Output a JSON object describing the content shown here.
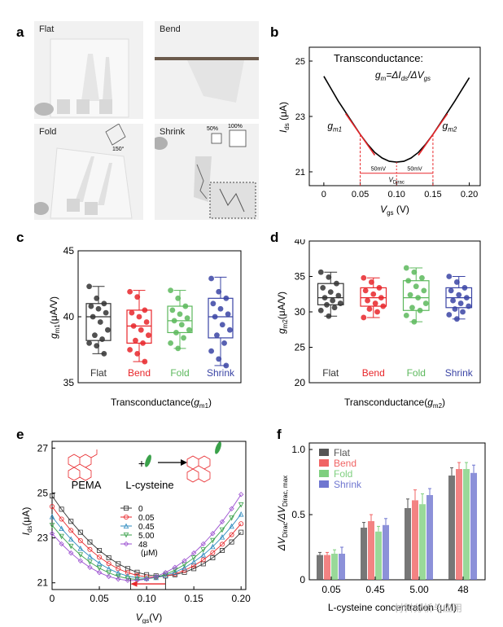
{
  "panels": {
    "a": {
      "letter": "a",
      "photos": [
        {
          "label": "Flat"
        },
        {
          "label": "Bend"
        },
        {
          "label": "Fold",
          "angle_label": "150°"
        },
        {
          "label": "Shrink",
          "scale_small": "50%",
          "scale_large": "100%"
        }
      ]
    },
    "b": {
      "letter": "b"
    },
    "c": {
      "letter": "c"
    },
    "d": {
      "letter": "d"
    },
    "e": {
      "letter": "e"
    },
    "f": {
      "letter": "f"
    }
  },
  "watermark": "材料分析与应用",
  "chart_data": [
    {
      "id": "b",
      "type": "line",
      "title": "Transconductance:",
      "formula": "g_m = ΔI_ds / ΔV_gs",
      "xlabel": "V_gs (V)",
      "ylabel": "I_ds (μA)",
      "xlim": [
        -0.02,
        0.215
      ],
      "ylim": [
        20.5,
        25.5
      ],
      "xticks": [
        0,
        0.05,
        0.1,
        0.15,
        0.2
      ],
      "xtick_labels": [
        "0",
        "0.05",
        "0.10",
        "0.15",
        "0.20"
      ],
      "yticks": [
        21,
        23,
        25
      ],
      "x": [
        0,
        0.01,
        0.02,
        0.03,
        0.04,
        0.05,
        0.06,
        0.07,
        0.08,
        0.09,
        0.1,
        0.11,
        0.12,
        0.13,
        0.14,
        0.15,
        0.16,
        0.17,
        0.18,
        0.19,
        0.2
      ],
      "y": [
        24.45,
        24.0,
        23.55,
        23.15,
        22.75,
        22.35,
        22.0,
        21.7,
        21.5,
        21.38,
        21.35,
        21.38,
        21.5,
        21.7,
        22.0,
        22.35,
        22.75,
        23.15,
        23.55,
        23.98,
        24.4
      ],
      "annotations": {
        "gm1": "g_m1",
        "gm2": "g_m2",
        "left_span": "50mV",
        "right_span": "50mV",
        "dirac": "V_Dirac"
      },
      "tangent_points": [
        0.05,
        0.15
      ],
      "dirac_x": 0.1
    },
    {
      "id": "c",
      "type": "box",
      "xlabel": "Transconductance(g_m1)",
      "ylabel": "g_m1 (μA/V)",
      "ylim": [
        35,
        45
      ],
      "yticks": [
        35,
        40,
        45
      ],
      "categories": [
        "Flat",
        "Bend",
        "Fold",
        "Shrink"
      ],
      "colors": [
        "#333333",
        "#e8262a",
        "#5cb85c",
        "#3a44a5"
      ],
      "boxes": [
        {
          "min": 37.2,
          "q1": 38.2,
          "median": 40.0,
          "q3": 41.0,
          "max": 42.3,
          "points": [
            42.3,
            41.4,
            41.0,
            40.8,
            40.6,
            40.3,
            40.0,
            39.6,
            39.0,
            38.6,
            38.3,
            38.0,
            37.8,
            37.2
          ]
        },
        {
          "min": 36.6,
          "q1": 38.0,
          "median": 39.3,
          "q3": 40.5,
          "max": 42.0,
          "points": [
            41.9,
            41.5,
            40.5,
            40.3,
            40.0,
            39.6,
            39.3,
            39.0,
            38.6,
            38.2,
            38.0,
            37.5,
            37.2,
            36.6
          ]
        },
        {
          "min": 37.6,
          "q1": 38.8,
          "median": 39.7,
          "q3": 40.8,
          "max": 42.0,
          "points": [
            42.0,
            41.4,
            40.8,
            40.5,
            40.2,
            39.9,
            39.7,
            39.4,
            39.0,
            38.8,
            38.4,
            38.0,
            37.6
          ]
        },
        {
          "min": 36.3,
          "q1": 38.4,
          "median": 40.0,
          "q3": 41.4,
          "max": 43.0,
          "points": [
            42.9,
            41.9,
            41.4,
            41.0,
            40.6,
            40.2,
            40.0,
            39.4,
            39.0,
            38.6,
            38.0,
            37.4,
            36.8,
            36.3
          ]
        }
      ]
    },
    {
      "id": "d",
      "type": "box",
      "xlabel": "Transconductance(g_m2)",
      "ylabel": "g_m2 (μA/V)",
      "ylim": [
        20,
        40
      ],
      "yticks": [
        20,
        25,
        30,
        35,
        40
      ],
      "categories": [
        "Flat",
        "Bend",
        "Fold",
        "Shrink"
      ],
      "colors": [
        "#333333",
        "#e8262a",
        "#5cb85c",
        "#3a44a5"
      ],
      "boxes": [
        {
          "min": 29.4,
          "q1": 31.0,
          "median": 32.0,
          "q3": 34.0,
          "max": 35.6,
          "points": [
            35.6,
            34.9,
            34.0,
            33.4,
            32.8,
            32.3,
            32.0,
            31.6,
            31.2,
            31.0,
            30.6,
            30.2,
            29.4
          ]
        },
        {
          "min": 29.2,
          "q1": 30.8,
          "median": 32.0,
          "q3": 33.4,
          "max": 34.8,
          "points": [
            34.8,
            34.2,
            33.4,
            33.0,
            32.5,
            32.0,
            31.6,
            31.2,
            30.8,
            30.4,
            30.0,
            29.2
          ]
        },
        {
          "min": 28.6,
          "q1": 30.2,
          "median": 32.0,
          "q3": 34.4,
          "max": 36.2,
          "points": [
            36.2,
            35.6,
            34.8,
            34.4,
            33.6,
            33.0,
            32.4,
            32.0,
            31.2,
            30.6,
            30.2,
            29.5,
            28.6
          ]
        },
        {
          "min": 29.0,
          "q1": 30.6,
          "median": 32.0,
          "q3": 33.4,
          "max": 35.0,
          "points": [
            35.0,
            34.2,
            33.4,
            33.0,
            32.4,
            32.0,
            31.6,
            31.2,
            30.8,
            30.4,
            30.0,
            29.6,
            29.0
          ]
        }
      ]
    },
    {
      "id": "e",
      "type": "line",
      "xlabel": "V_gs (V)",
      "ylabel": "I_ds (μA)",
      "xlim": [
        0,
        0.205
      ],
      "ylim": [
        20.7,
        27.3
      ],
      "xticks": [
        0,
        0.05,
        0.1,
        0.15,
        0.2
      ],
      "xtick_labels": [
        "0",
        "0.05",
        "0.10",
        "0.15",
        "0.20"
      ],
      "yticks": [
        21,
        23,
        25,
        27
      ],
      "legend_title": "(μM)",
      "legend_position": "center",
      "inset_labels": {
        "molecule_a": "PEMA",
        "plus": "+",
        "molecule_b": "L-cysteine"
      },
      "series": [
        {
          "name": "0",
          "marker": "square",
          "color": "#333333",
          "dirac": 0.115,
          "iat": 21.3,
          "a": 270
        },
        {
          "name": "0.05",
          "marker": "circle",
          "color": "#e8262a",
          "dirac": 0.107,
          "iat": 21.25,
          "a": 275
        },
        {
          "name": "0.45",
          "marker": "triangle",
          "color": "#2e8bbf",
          "dirac": 0.099,
          "iat": 21.2,
          "a": 280
        },
        {
          "name": "5.00",
          "marker": "triangle-down",
          "color": "#3aa14a",
          "dirac": 0.092,
          "iat": 21.15,
          "a": 285
        },
        {
          "name": "48",
          "marker": "diamond",
          "color": "#9b4fd0",
          "dirac": 0.085,
          "iat": 21.1,
          "a": 290
        }
      ]
    },
    {
      "id": "f",
      "type": "bar",
      "xlabel": "L-cysteine concentration (μM)",
      "ylabel": "ΔV_Dirac / ΔV_Dirac,max",
      "ylim": [
        0,
        1.05
      ],
      "yticks": [
        0,
        0.5,
        1.0
      ],
      "ytick_labels": [
        "0",
        "0.5",
        "1.0"
      ],
      "categories": [
        "0.05",
        "0.45",
        "5.00",
        "48"
      ],
      "legend_position": "top-left",
      "series": [
        {
          "name": "Flat",
          "color": "#555555",
          "values": [
            0.19,
            0.4,
            0.55,
            0.8
          ],
          "errors": [
            0.02,
            0.04,
            0.07,
            0.06
          ]
        },
        {
          "name": "Bend",
          "color": "#f06464",
          "values": [
            0.19,
            0.45,
            0.61,
            0.85
          ],
          "errors": [
            0.02,
            0.05,
            0.08,
            0.05
          ]
        },
        {
          "name": "Fold",
          "color": "#7fcf7f",
          "values": [
            0.2,
            0.37,
            0.58,
            0.85
          ],
          "errors": [
            0.03,
            0.04,
            0.08,
            0.05
          ]
        },
        {
          "name": "Shrink",
          "color": "#6f76d0",
          "values": [
            0.2,
            0.42,
            0.65,
            0.82
          ],
          "errors": [
            0.05,
            0.05,
            0.05,
            0.06
          ]
        }
      ]
    }
  ]
}
